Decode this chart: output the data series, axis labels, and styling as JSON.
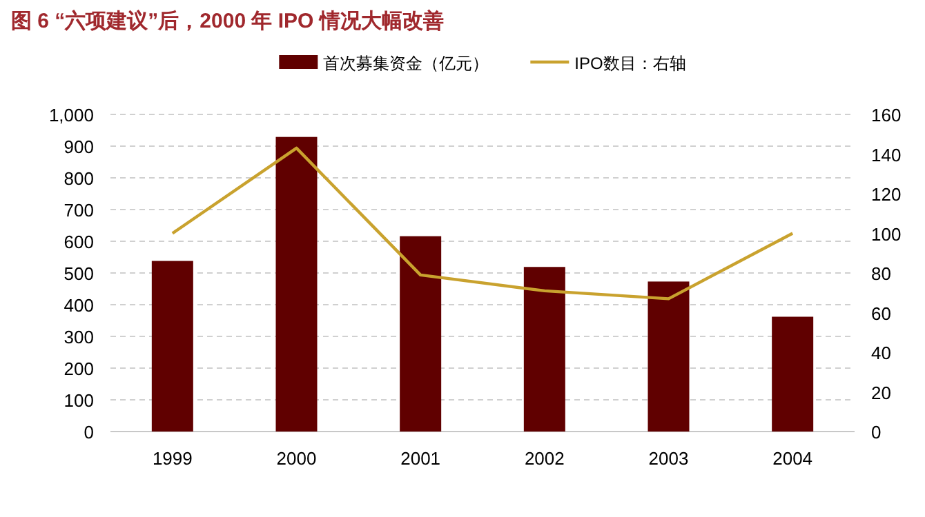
{
  "chart_data": {
    "type": "bar",
    "title": "图 6 “六项建议”后，2000 年 IPO 情况大幅改善",
    "categories": [
      "1999",
      "2000",
      "2001",
      "2002",
      "2003",
      "2004"
    ],
    "series": [
      {
        "name": "首次募集资金（亿元）",
        "color": "#600000",
        "values": [
          538,
          929,
          616,
          519,
          473,
          362
        ]
      },
      {
        "name": "IPO数目：右轴",
        "type": "line",
        "axis": "y2",
        "color": "#c9a22e",
        "values": [
          100,
          143,
          79,
          71,
          67,
          100
        ]
      }
    ],
    "ylim": [
      0,
      1000
    ],
    "yticks": [
      0,
      100,
      200,
      300,
      400,
      500,
      600,
      700,
      800,
      900,
      {
        "value": 1000,
        "label": "1,000"
      }
    ],
    "y2lim": [
      0,
      160
    ],
    "y2ticks": [
      0,
      20,
      40,
      60,
      80,
      100,
      120,
      140,
      160
    ],
    "grid": "y",
    "legend": "top",
    "marker": "none",
    "line_style": "solid"
  }
}
